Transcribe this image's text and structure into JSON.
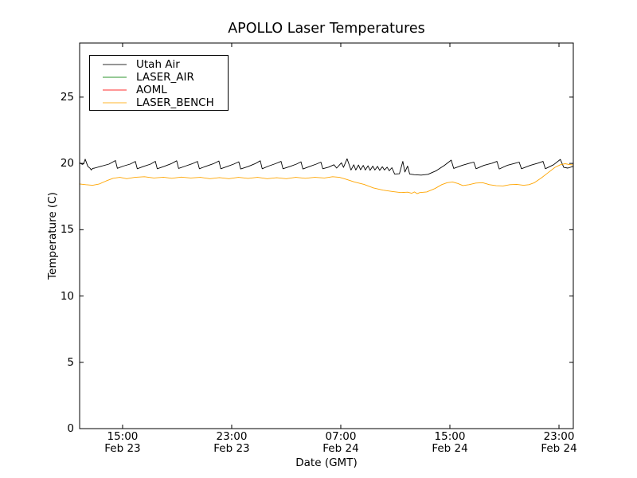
{
  "figure": {
    "background": "#ffffff",
    "frame_color": "#000000"
  },
  "chart_data": {
    "type": "line",
    "title": "APOLLO Laser Temperatures",
    "xlabel": "Date (GMT)",
    "ylabel": "Temperature (C)",
    "x_unit": "hours since Feb 23 00:00 GMT",
    "xlim": [
      11.85,
      48.05
    ],
    "ylim": [
      0,
      29.08
    ],
    "grid": false,
    "legend_position": "upper-left",
    "yticks": [
      0,
      5,
      10,
      15,
      20,
      25
    ],
    "xticks": [
      {
        "t": 15,
        "line1": "15:00",
        "line2": "Feb 23"
      },
      {
        "t": 23,
        "line1": "23:00",
        "line2": "Feb 23"
      },
      {
        "t": 31,
        "line1": "07:00",
        "line2": "Feb 24"
      },
      {
        "t": 39,
        "line1": "15:00",
        "line2": "Feb 24"
      },
      {
        "t": 47,
        "line1": "23:00",
        "line2": "Feb 24"
      }
    ],
    "legend": [
      {
        "name": "Utah Air",
        "color": "#000000"
      },
      {
        "name": "LASER_AIR",
        "color": "#008000"
      },
      {
        "name": "AOML",
        "color": "#ff0000"
      },
      {
        "name": "LASER_BENCH",
        "color": "#ffa500"
      }
    ],
    "series": [
      {
        "name": "Utah Air",
        "color": "#000000",
        "points": [
          [
            11.85,
            20.05
          ],
          [
            12.05,
            19.93
          ],
          [
            12.15,
            19.97
          ],
          [
            12.26,
            20.32
          ],
          [
            12.45,
            19.78
          ],
          [
            12.62,
            19.63
          ],
          [
            12.7,
            19.5
          ],
          [
            12.8,
            19.62
          ],
          [
            12.95,
            19.65
          ],
          [
            13.4,
            19.78
          ],
          [
            14.0,
            19.95
          ],
          [
            14.48,
            20.22
          ],
          [
            14.62,
            19.63
          ],
          [
            15.05,
            19.8
          ],
          [
            15.55,
            19.95
          ],
          [
            15.94,
            20.15
          ],
          [
            16.08,
            19.6
          ],
          [
            16.55,
            19.78
          ],
          [
            17.05,
            19.95
          ],
          [
            17.4,
            20.16
          ],
          [
            17.54,
            19.6
          ],
          [
            18.05,
            19.78
          ],
          [
            18.55,
            19.97
          ],
          [
            18.97,
            20.2
          ],
          [
            19.11,
            19.62
          ],
          [
            19.6,
            19.8
          ],
          [
            20.1,
            19.97
          ],
          [
            20.49,
            20.15
          ],
          [
            20.63,
            19.6
          ],
          [
            21.1,
            19.78
          ],
          [
            21.65,
            19.97
          ],
          [
            22.06,
            20.18
          ],
          [
            22.2,
            19.6
          ],
          [
            22.7,
            19.78
          ],
          [
            23.15,
            19.95
          ],
          [
            23.52,
            20.12
          ],
          [
            23.66,
            19.58
          ],
          [
            24.2,
            19.76
          ],
          [
            24.7,
            19.97
          ],
          [
            25.1,
            20.2
          ],
          [
            25.24,
            19.6
          ],
          [
            25.7,
            19.8
          ],
          [
            26.2,
            19.98
          ],
          [
            26.62,
            20.15
          ],
          [
            26.76,
            19.6
          ],
          [
            27.3,
            19.78
          ],
          [
            27.75,
            19.95
          ],
          [
            28.08,
            20.12
          ],
          [
            28.22,
            19.58
          ],
          [
            28.7,
            19.76
          ],
          [
            29.2,
            19.95
          ],
          [
            29.54,
            20.1
          ],
          [
            29.68,
            19.6
          ],
          [
            30.1,
            19.72
          ],
          [
            30.5,
            19.9
          ],
          [
            30.7,
            19.65
          ],
          [
            31.05,
            20.05
          ],
          [
            31.2,
            19.7
          ],
          [
            31.46,
            20.35
          ],
          [
            31.75,
            19.5
          ],
          [
            31.95,
            19.9
          ],
          [
            32.1,
            19.5
          ],
          [
            32.3,
            19.88
          ],
          [
            32.45,
            19.52
          ],
          [
            32.65,
            19.85
          ],
          [
            32.8,
            19.5
          ],
          [
            33.0,
            19.82
          ],
          [
            33.15,
            19.48
          ],
          [
            33.35,
            19.8
          ],
          [
            33.5,
            19.5
          ],
          [
            33.7,
            19.78
          ],
          [
            33.85,
            19.48
          ],
          [
            34.05,
            19.75
          ],
          [
            34.2,
            19.5
          ],
          [
            34.4,
            19.72
          ],
          [
            34.55,
            19.45
          ],
          [
            34.75,
            19.68
          ],
          [
            34.95,
            19.2
          ],
          [
            35.3,
            19.22
          ],
          [
            35.55,
            20.15
          ],
          [
            35.7,
            19.35
          ],
          [
            35.9,
            19.8
          ],
          [
            36.05,
            19.2
          ],
          [
            36.4,
            19.15
          ],
          [
            36.9,
            19.12
          ],
          [
            37.4,
            19.18
          ],
          [
            38.0,
            19.45
          ],
          [
            38.6,
            19.85
          ],
          [
            39.1,
            20.25
          ],
          [
            39.28,
            19.62
          ],
          [
            39.9,
            19.85
          ],
          [
            40.4,
            20.0
          ],
          [
            40.75,
            20.1
          ],
          [
            40.92,
            19.6
          ],
          [
            41.5,
            19.85
          ],
          [
            42.1,
            20.02
          ],
          [
            42.45,
            20.15
          ],
          [
            42.62,
            19.58
          ],
          [
            43.2,
            19.85
          ],
          [
            43.75,
            20.0
          ],
          [
            44.08,
            20.1
          ],
          [
            44.25,
            19.6
          ],
          [
            44.9,
            19.85
          ],
          [
            45.45,
            20.02
          ],
          [
            45.83,
            20.15
          ],
          [
            46.0,
            19.6
          ],
          [
            46.6,
            19.9
          ],
          [
            47.1,
            20.3
          ],
          [
            47.35,
            19.7
          ],
          [
            47.65,
            19.65
          ],
          [
            48.05,
            19.78
          ]
        ]
      },
      {
        "name": "LASER_AIR",
        "color": "#008000",
        "points": []
      },
      {
        "name": "AOML",
        "color": "#ff0000",
        "points": []
      },
      {
        "name": "LASER_BENCH",
        "color": "#ffa500",
        "points": [
          [
            11.85,
            18.45
          ],
          [
            12.3,
            18.4
          ],
          [
            12.8,
            18.35
          ],
          [
            13.3,
            18.45
          ],
          [
            13.8,
            18.68
          ],
          [
            14.3,
            18.88
          ],
          [
            14.8,
            18.95
          ],
          [
            15.3,
            18.85
          ],
          [
            15.9,
            18.95
          ],
          [
            16.6,
            19.0
          ],
          [
            17.3,
            18.9
          ],
          [
            18.0,
            18.96
          ],
          [
            18.6,
            18.88
          ],
          [
            19.3,
            18.97
          ],
          [
            20.0,
            18.9
          ],
          [
            20.7,
            18.95
          ],
          [
            21.4,
            18.85
          ],
          [
            22.1,
            18.93
          ],
          [
            22.8,
            18.85
          ],
          [
            23.5,
            18.95
          ],
          [
            24.2,
            18.87
          ],
          [
            24.9,
            18.95
          ],
          [
            25.6,
            18.85
          ],
          [
            26.3,
            18.92
          ],
          [
            27.0,
            18.85
          ],
          [
            27.7,
            18.95
          ],
          [
            28.4,
            18.88
          ],
          [
            29.1,
            18.95
          ],
          [
            29.8,
            18.9
          ],
          [
            30.4,
            19.0
          ],
          [
            30.9,
            18.95
          ],
          [
            31.4,
            18.8
          ],
          [
            32.0,
            18.6
          ],
          [
            32.7,
            18.42
          ],
          [
            33.4,
            18.15
          ],
          [
            34.1,
            17.98
          ],
          [
            34.8,
            17.88
          ],
          [
            35.4,
            17.8
          ],
          [
            35.9,
            17.83
          ],
          [
            36.2,
            17.75
          ],
          [
            36.4,
            17.85
          ],
          [
            36.6,
            17.72
          ],
          [
            36.8,
            17.8
          ],
          [
            37.3,
            17.85
          ],
          [
            37.9,
            18.1
          ],
          [
            38.4,
            18.4
          ],
          [
            38.8,
            18.55
          ],
          [
            39.2,
            18.6
          ],
          [
            39.6,
            18.48
          ],
          [
            39.95,
            18.33
          ],
          [
            40.4,
            18.4
          ],
          [
            40.9,
            18.52
          ],
          [
            41.4,
            18.55
          ],
          [
            41.9,
            18.4
          ],
          [
            42.4,
            18.32
          ],
          [
            42.9,
            18.3
          ],
          [
            43.4,
            18.4
          ],
          [
            43.9,
            18.42
          ],
          [
            44.4,
            18.35
          ],
          [
            44.8,
            18.4
          ],
          [
            45.2,
            18.55
          ],
          [
            45.7,
            18.9
          ],
          [
            46.2,
            19.3
          ],
          [
            46.7,
            19.7
          ],
          [
            47.1,
            19.9
          ],
          [
            47.45,
            19.98
          ],
          [
            47.75,
            19.92
          ],
          [
            48.05,
            19.88
          ]
        ]
      }
    ]
  }
}
